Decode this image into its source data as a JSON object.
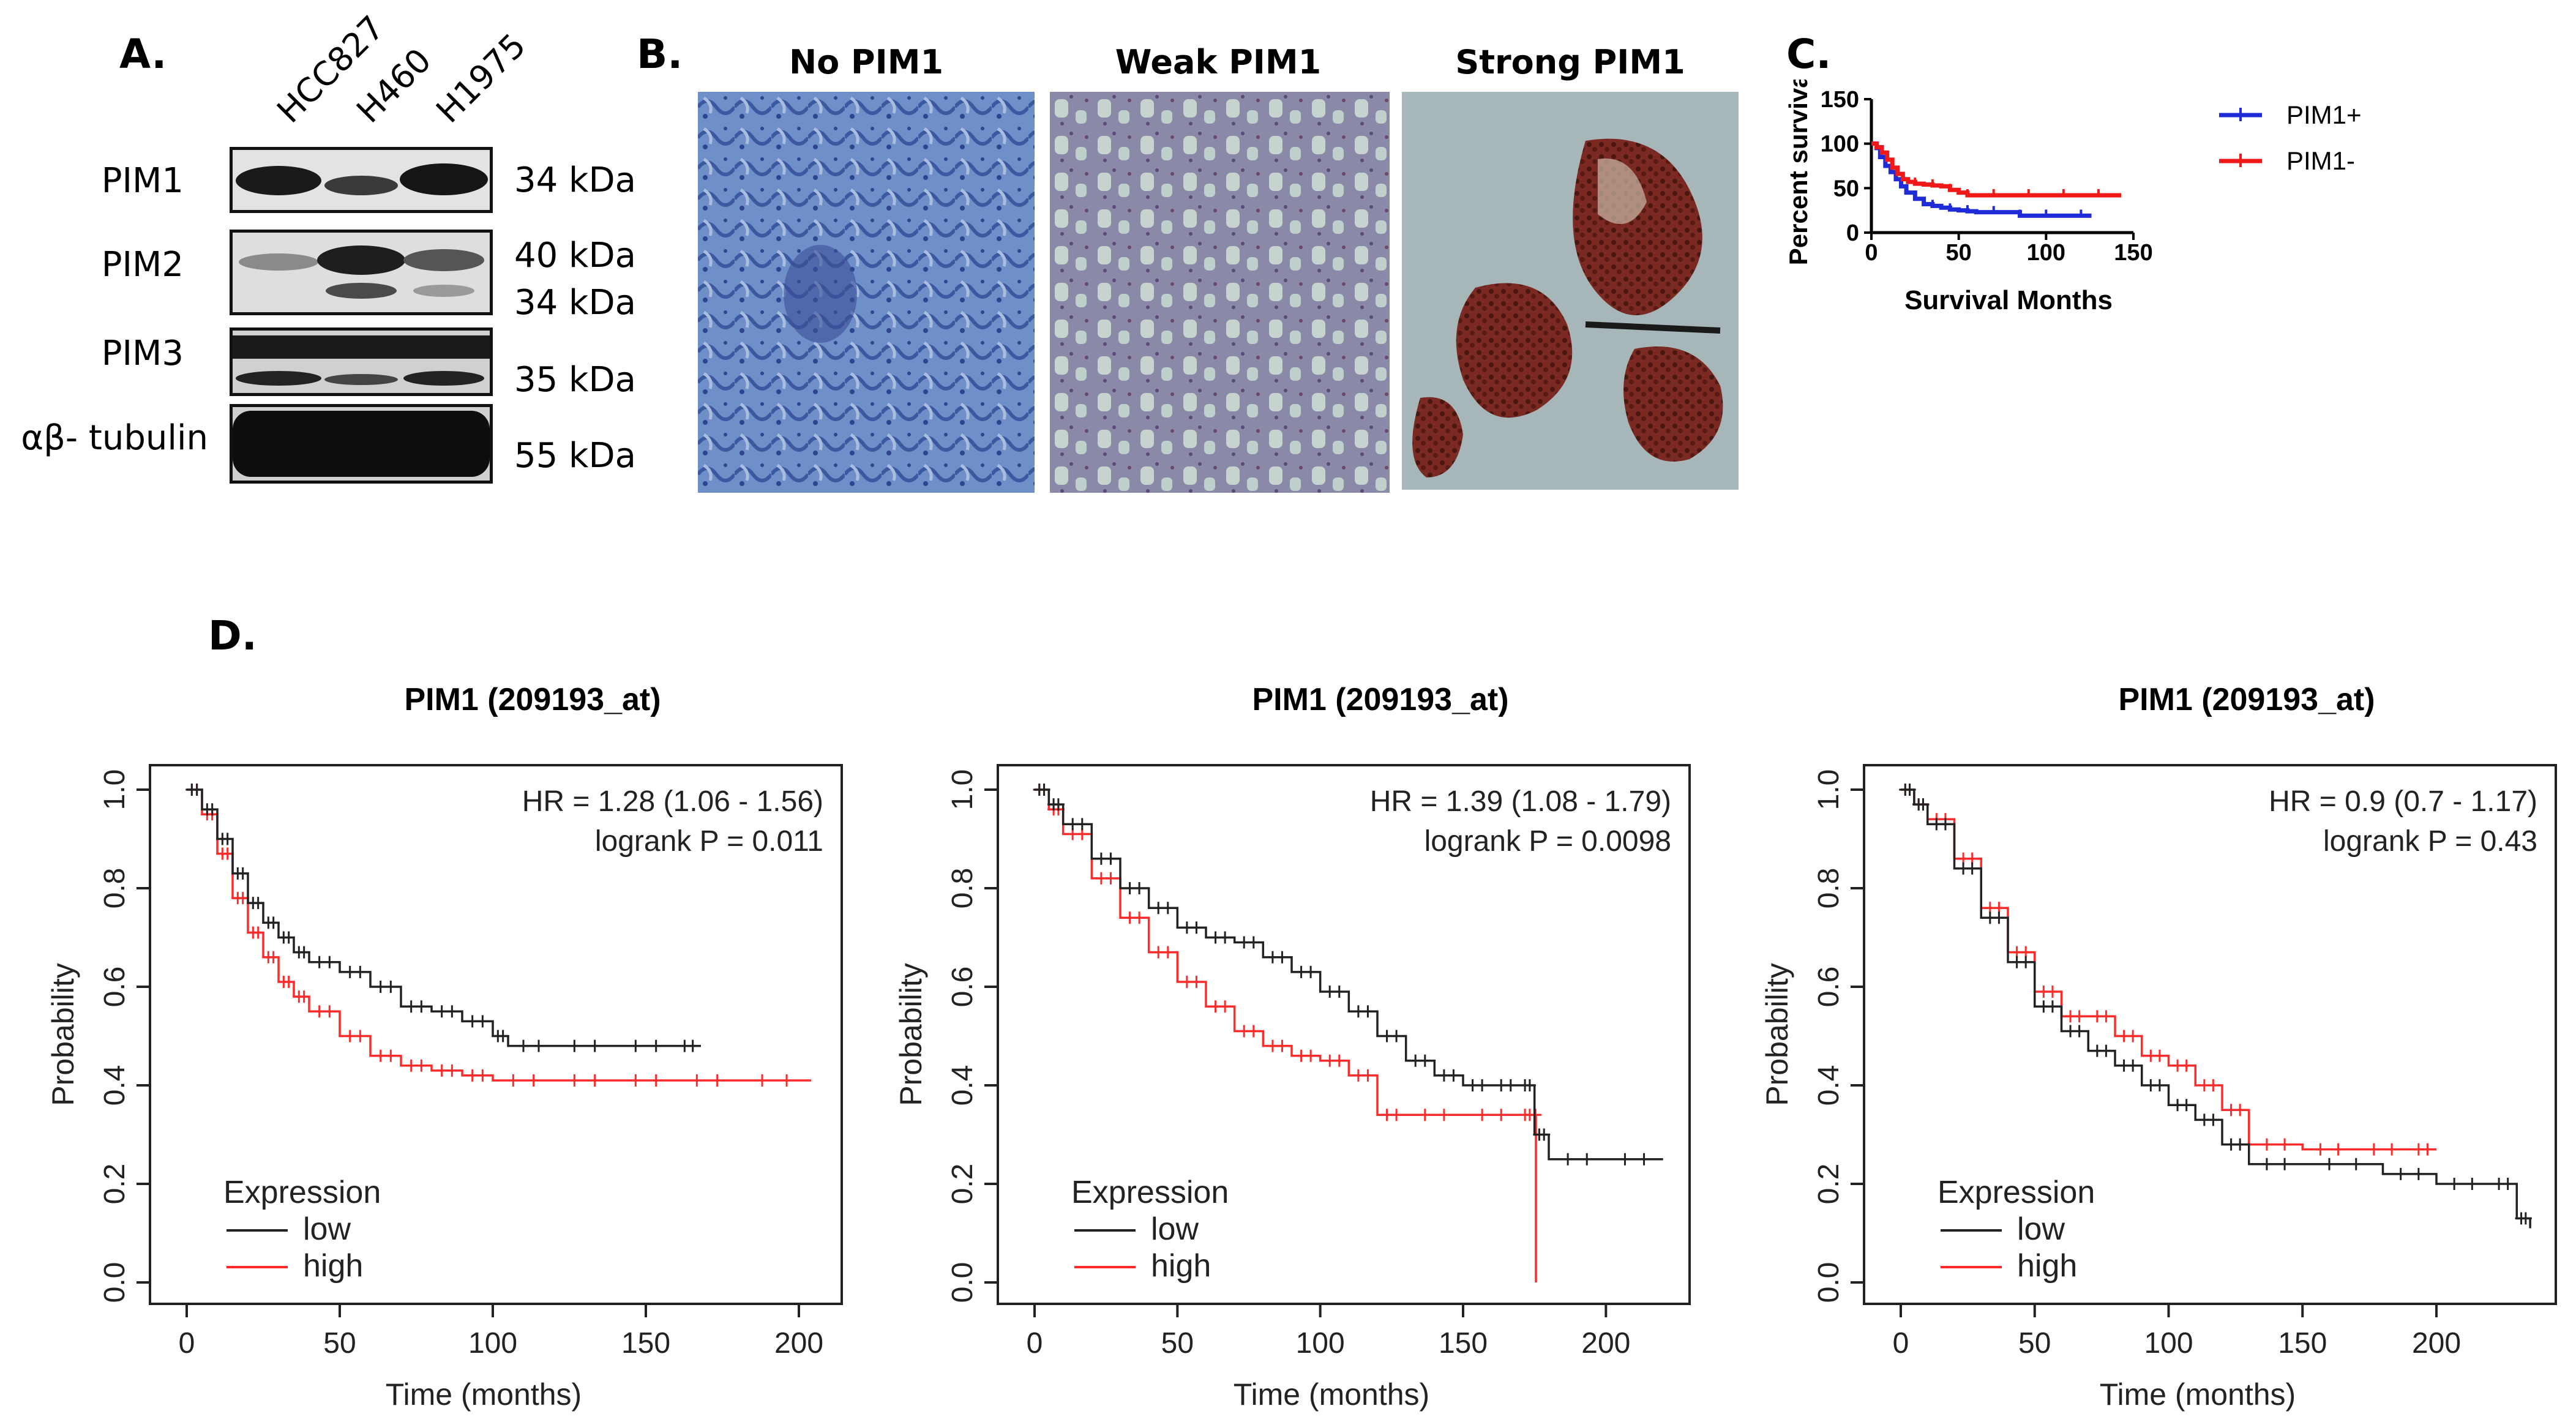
{
  "panel_labels": {
    "a": "A.",
    "b": "B.",
    "c": "C.",
    "d": "D."
  },
  "western_blot": {
    "lanes": [
      "HCC827",
      "H460",
      "H1975"
    ],
    "rows": [
      {
        "protein": "PIM1",
        "sizes": [
          "34 kDa"
        ]
      },
      {
        "protein": "PIM2",
        "sizes": [
          "40 kDa",
          "34 kDa"
        ]
      },
      {
        "protein": "PIM3",
        "sizes": [
          "35 kDa"
        ]
      },
      {
        "protein": "αβ- tubulin",
        "sizes": [
          "55 kDa"
        ]
      }
    ]
  },
  "ihc": {
    "titles": [
      "No PIM1",
      "Weak PIM1",
      "Strong PIM1"
    ]
  },
  "colors": {
    "pim1_pos": "#1f2bd6",
    "pim1_neg": "#f01818",
    "low": "#222222",
    "high": "#ff2b2b"
  },
  "chart_data": [
    {
      "panel": "C",
      "type": "line",
      "xlabel": "Survival Months",
      "ylabel": "Percent survival",
      "xlim": [
        0,
        150
      ],
      "ylim": [
        0,
        150
      ],
      "xticks": [
        "0",
        "50",
        "100",
        "150"
      ],
      "yticks": [
        "0",
        "50",
        "100",
        "150"
      ],
      "legend_position": "top-right",
      "series": [
        {
          "name": "PIM1+",
          "color": "#1f2bd6",
          "x": [
            0,
            3,
            5,
            8,
            11,
            14,
            17,
            20,
            25,
            30,
            35,
            40,
            45,
            50,
            55,
            60,
            70,
            80,
            85,
            90,
            100,
            110,
            120,
            126
          ],
          "y": [
            100,
            95,
            85,
            75,
            68,
            60,
            52,
            45,
            38,
            32,
            30,
            28,
            26,
            25,
            24,
            23,
            23,
            23,
            19,
            19,
            19,
            19,
            19,
            19
          ]
        },
        {
          "name": "PIM1-",
          "color": "#f01818",
          "x": [
            0,
            3,
            6,
            9,
            12,
            15,
            18,
            21,
            25,
            30,
            35,
            40,
            45,
            50,
            55,
            60,
            70,
            80,
            90,
            100,
            110,
            120,
            130,
            143
          ],
          "y": [
            100,
            96,
            90,
            82,
            73,
            66,
            60,
            57,
            55,
            54,
            53,
            52,
            48,
            45,
            42,
            42,
            42,
            42,
            42,
            42,
            42,
            42,
            42,
            42
          ]
        }
      ]
    },
    {
      "panel": "D1",
      "type": "line",
      "title": "PIM1 (209193_at)",
      "xlabel": "Time (months)",
      "ylabel": "Probability",
      "xlim": [
        0,
        210
      ],
      "ylim": [
        0,
        1
      ],
      "xticks": [
        "0",
        "50",
        "100",
        "150",
        "200"
      ],
      "yticks": [
        "0.0",
        "0.2",
        "0.4",
        "0.6",
        "0.8",
        "1.0"
      ],
      "annotations": [
        "HR = 1.28 (1.06 - 1.56)",
        "logrank P = 0.011"
      ],
      "legend_title": "Expression",
      "series": [
        {
          "name": "low",
          "color": "#222222",
          "x": [
            0,
            5,
            10,
            15,
            20,
            25,
            30,
            35,
            40,
            50,
            60,
            70,
            80,
            90,
            100,
            105,
            120,
            140,
            160,
            168
          ],
          "y": [
            1.0,
            0.96,
            0.9,
            0.83,
            0.77,
            0.73,
            0.7,
            0.67,
            0.65,
            0.63,
            0.6,
            0.56,
            0.55,
            0.53,
            0.5,
            0.48,
            0.48,
            0.48,
            0.48,
            0.48
          ]
        },
        {
          "name": "high",
          "color": "#ff2b2b",
          "x": [
            0,
            5,
            10,
            15,
            20,
            25,
            30,
            35,
            40,
            50,
            60,
            70,
            80,
            90,
            100,
            120,
            140,
            160,
            180,
            204
          ],
          "y": [
            1.0,
            0.95,
            0.87,
            0.78,
            0.71,
            0.66,
            0.61,
            0.58,
            0.55,
            0.5,
            0.46,
            0.44,
            0.43,
            0.42,
            0.41,
            0.41,
            0.41,
            0.41,
            0.41,
            0.41
          ]
        }
      ]
    },
    {
      "panel": "D2",
      "type": "line",
      "title": "PIM1 (209193_at)",
      "xlabel": "Time (months)",
      "ylabel": "Probability",
      "xlim": [
        0,
        225
      ],
      "ylim": [
        0,
        1
      ],
      "xticks": [
        "0",
        "50",
        "100",
        "150",
        "200"
      ],
      "yticks": [
        "0.0",
        "0.2",
        "0.4",
        "0.6",
        "0.8",
        "1.0"
      ],
      "annotations": [
        "HR = 1.39 (1.08 - 1.79)",
        "logrank P = 0.0098"
      ],
      "legend_title": "Expression",
      "series": [
        {
          "name": "low",
          "color": "#222222",
          "x": [
            0,
            5,
            10,
            20,
            30,
            40,
            50,
            60,
            70,
            80,
            90,
            100,
            110,
            120,
            130,
            140,
            150,
            160,
            170,
            175,
            180,
            200,
            220
          ],
          "y": [
            1.0,
            0.97,
            0.93,
            0.86,
            0.8,
            0.76,
            0.72,
            0.7,
            0.69,
            0.66,
            0.63,
            0.59,
            0.55,
            0.5,
            0.45,
            0.42,
            0.4,
            0.4,
            0.4,
            0.3,
            0.25,
            0.25,
            0.25
          ]
        },
        {
          "name": "high",
          "color": "#ff2b2b",
          "x": [
            0,
            5,
            10,
            20,
            30,
            40,
            50,
            60,
            70,
            80,
            90,
            100,
            110,
            120,
            130,
            150,
            170,
            175,
            175.5
          ],
          "y": [
            1.0,
            0.96,
            0.91,
            0.82,
            0.74,
            0.67,
            0.61,
            0.56,
            0.51,
            0.48,
            0.46,
            0.45,
            0.42,
            0.34,
            0.34,
            0.34,
            0.34,
            0.34,
            0.0
          ]
        }
      ]
    },
    {
      "panel": "D3",
      "type": "line",
      "title": "PIM1 (209193_at)",
      "xlabel": "Time (months)",
      "ylabel": "Probability",
      "xlim": [
        0,
        240
      ],
      "ylim": [
        0,
        1
      ],
      "xticks": [
        "0",
        "50",
        "100",
        "150",
        "200"
      ],
      "yticks": [
        "0.0",
        "0.2",
        "0.4",
        "0.6",
        "0.8",
        "1.0"
      ],
      "annotations": [
        "HR = 0.9 (0.7 - 1.17)",
        "logrank P = 0.43"
      ],
      "legend_title": "Expression",
      "series": [
        {
          "name": "low",
          "color": "#222222",
          "x": [
            0,
            5,
            10,
            20,
            30,
            40,
            50,
            60,
            70,
            80,
            90,
            100,
            110,
            120,
            130,
            150,
            180,
            200,
            220,
            230,
            235
          ],
          "y": [
            1.0,
            0.97,
            0.93,
            0.84,
            0.74,
            0.65,
            0.56,
            0.51,
            0.47,
            0.44,
            0.4,
            0.36,
            0.33,
            0.28,
            0.24,
            0.24,
            0.22,
            0.2,
            0.2,
            0.13,
            0.11
          ]
        },
        {
          "name": "high",
          "color": "#ff2b2b",
          "x": [
            0,
            5,
            10,
            20,
            30,
            40,
            50,
            60,
            70,
            80,
            90,
            100,
            110,
            120,
            130,
            150,
            170,
            190,
            200
          ],
          "y": [
            1.0,
            0.97,
            0.94,
            0.86,
            0.76,
            0.67,
            0.59,
            0.54,
            0.54,
            0.5,
            0.46,
            0.44,
            0.4,
            0.35,
            0.28,
            0.27,
            0.27,
            0.27,
            0.27
          ]
        }
      ]
    }
  ]
}
